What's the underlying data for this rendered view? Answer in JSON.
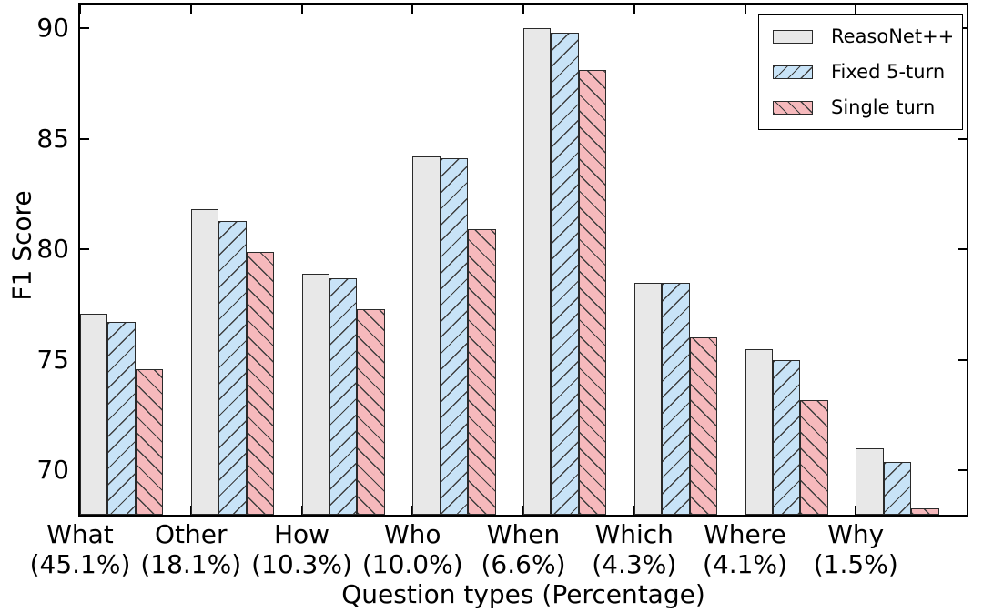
{
  "chart_data": {
    "type": "bar",
    "title": "",
    "xlabel": "Question types (Percentage)",
    "ylabel": "F1 Score",
    "categories": [
      "What",
      "Other",
      "How",
      "Who",
      "When",
      "Which",
      "Where",
      "Why"
    ],
    "category_sublabels": [
      "(45.1%)",
      "(18.1%)",
      "(10.3%)",
      "(10.0%)",
      "(6.6%)",
      "(4.3%)",
      "(4.1%)",
      "(1.5%)"
    ],
    "series": [
      {
        "name": "ReasoNet++",
        "values": [
          77.1,
          81.8,
          78.9,
          84.2,
          90.0,
          78.5,
          75.5,
          71.0
        ],
        "fill": "#e8e8e8",
        "hatch": "none"
      },
      {
        "name": "Fixed 5-turn",
        "values": [
          76.7,
          81.3,
          78.7,
          84.1,
          89.8,
          78.5,
          75.0,
          70.4
        ],
        "fill": "#c8e3f7",
        "hatch": "/"
      },
      {
        "name": "Single turn",
        "values": [
          74.6,
          79.9,
          77.3,
          80.9,
          88.1,
          76.0,
          73.2,
          68.3
        ],
        "fill": "#f6b9bc",
        "hatch": "\\"
      }
    ],
    "yticks": [
      70,
      75,
      80,
      85,
      90
    ],
    "ytick_labels": [
      "70",
      "75",
      "80",
      "85",
      "90"
    ],
    "ylim": [
      68.0,
      91.07
    ],
    "xlim": [
      0,
      8
    ],
    "bar_width_fraction": 0.25,
    "legend_position": "upper right",
    "grid": false,
    "edge_color": "#2a2a2a",
    "hatch_color": "#3d3d3d",
    "axis_color": "#000000"
  }
}
